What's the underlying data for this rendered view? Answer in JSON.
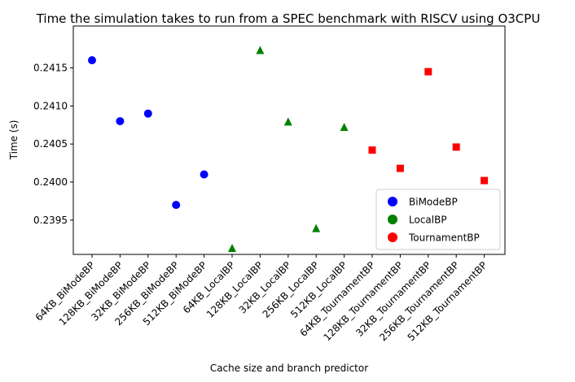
{
  "chart_data": {
    "type": "scatter",
    "title": "Time the simulation takes to run from a SPEC benchmark with RISCV using O3CPU",
    "xlabel": "Cache size and branch predictor",
    "ylabel": "Time (s)",
    "ylim": [
      0.23905,
      0.24205
    ],
    "yticks": [
      0.2395,
      0.24,
      0.2405,
      0.241,
      0.2415
    ],
    "ytick_labels": [
      "0.2395",
      "0.2400",
      "0.2405",
      "0.2410",
      "0.2415"
    ],
    "grid": false,
    "legend_position": "bottom-right",
    "categories": [
      "64KB_BiModeBP",
      "128KB_BiModeBP",
      "32KB_BiModeBP",
      "256KB_BiModeBP",
      "512KB_BiModeBP",
      "64KB_LocalBP",
      "128KB_LocalBP",
      "32KB_LocalBP",
      "256KB_LocalBP",
      "512KB_LocalBP",
      "64KB_TournamentBP",
      "128KB_TournamentBP",
      "32KB_TournamentBP",
      "256KB_TournamentBP",
      "512KB_TournamentBP"
    ],
    "series": [
      {
        "name": "BiModeBP",
        "color": "#0000ff",
        "marker": "circle",
        "x": [
          "64KB_BiModeBP",
          "128KB_BiModeBP",
          "32KB_BiModeBP",
          "256KB_BiModeBP",
          "512KB_BiModeBP"
        ],
        "values": [
          0.2416,
          0.2408,
          0.2409,
          0.2397,
          0.2401
        ]
      },
      {
        "name": "LocalBP",
        "color": "#008000",
        "marker": "triangle",
        "x": [
          "64KB_LocalBP",
          "128KB_LocalBP",
          "32KB_LocalBP",
          "256KB_LocalBP",
          "512KB_LocalBP"
        ],
        "values": [
          0.23913,
          0.24173,
          0.24079,
          0.23939,
          0.24072
        ]
      },
      {
        "name": "TournamentBP",
        "color": "#ff0000",
        "marker": "square",
        "x": [
          "64KB_TournamentBP",
          "128KB_TournamentBP",
          "32KB_TournamentBP",
          "256KB_TournamentBP",
          "512KB_TournamentBP"
        ],
        "values": [
          0.24042,
          0.24018,
          0.24145,
          0.24046,
          0.24002
        ]
      }
    ]
  }
}
